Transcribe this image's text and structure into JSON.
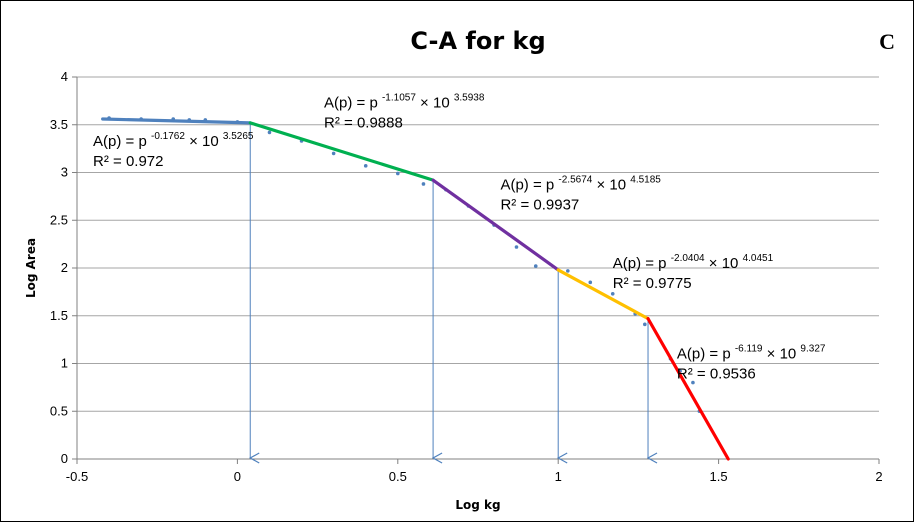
{
  "panel_letter": "C",
  "chart_data": {
    "type": "line",
    "title": "C-A for kg",
    "xlabel": "Log  kg",
    "ylabel": "Log Area",
    "xlim": [
      -0.5,
      2
    ],
    "ylim": [
      0,
      4
    ],
    "x_ticks": [
      -0.5,
      0,
      0.5,
      1,
      1.5,
      2
    ],
    "y_ticks": [
      0,
      0.5,
      1,
      1.5,
      2,
      2.5,
      3,
      3.5,
      4
    ],
    "x_tick_labels": [
      "-0.5",
      "0",
      "0.5",
      "1",
      "1.5",
      "2"
    ],
    "y_tick_labels": [
      "0",
      "0.5",
      "1",
      "1.5",
      "2",
      "2.5",
      "3",
      "3.5",
      "4"
    ],
    "grid": "horizontal",
    "series": [
      {
        "color": "#4F81BD",
        "x": [
          -0.42,
          0.04
        ],
        "y": [
          3.56,
          3.52
        ]
      },
      {
        "color": "#00B050",
        "x": [
          0.04,
          0.61
        ],
        "y": [
          3.52,
          2.92
        ]
      },
      {
        "color": "#7030A0",
        "x": [
          0.61,
          1.0
        ],
        "y": [
          2.92,
          1.98
        ]
      },
      {
        "color": "#FFC000",
        "x": [
          1.0,
          1.28
        ],
        "y": [
          1.98,
          1.47
        ]
      },
      {
        "color": "#FF0000",
        "x": [
          1.28,
          1.53
        ],
        "y": [
          1.47,
          0.0
        ]
      }
    ],
    "scatter": {
      "color": "#4F81BD",
      "x": [
        -0.4,
        -0.3,
        -0.2,
        -0.15,
        -0.1,
        0.0,
        0.1,
        0.2,
        0.3,
        0.4,
        0.5,
        0.58,
        0.65,
        0.72,
        0.8,
        0.87,
        0.93,
        1.03,
        1.1,
        1.17,
        1.24,
        1.27,
        1.35,
        1.38,
        1.42,
        1.44
      ],
      "y": [
        3.57,
        3.56,
        3.56,
        3.55,
        3.55,
        3.53,
        3.42,
        3.33,
        3.2,
        3.07,
        2.99,
        2.88,
        2.82,
        2.65,
        2.45,
        2.22,
        2.02,
        1.97,
        1.85,
        1.73,
        1.52,
        1.41,
        1.05,
        0.92,
        0.8,
        0.5
      ]
    },
    "breakpoints": [
      0.04,
      0.61,
      1.0,
      1.28
    ],
    "annotations": [
      {
        "text": "A(p) = p ",
        "exp1": "-0.1762",
        "mid": " × 10 ",
        "exp2": "3.5265",
        "r2": "R² = 0.972",
        "x": -0.45,
        "y": 3.28
      },
      {
        "text": "A(p) = p ",
        "exp1": "-1.1057",
        "mid": " × 10 ",
        "exp2": "3.5938",
        "r2": "R² = 0.9888",
        "x": 0.27,
        "y": 3.68
      },
      {
        "text": "A(p) = p ",
        "exp1": "-2.5674",
        "mid": " × 10 ",
        "exp2": "4.5185",
        "r2": "R² = 0.9937",
        "x": 0.82,
        "y": 2.82
      },
      {
        "text": "A(p) = p ",
        "exp1": "-2.0404",
        "mid": " × 10 ",
        "exp2": "4.0451",
        "r2": "R² = 0.9775",
        "x": 1.17,
        "y": 2.0
      },
      {
        "text": "A(p) = p ",
        "exp1": "-6.119",
        "mid": " × 10 ",
        "exp2": "9.327",
        "r2": "R² = 0.9536",
        "x": 1.37,
        "y": 1.05
      }
    ]
  }
}
